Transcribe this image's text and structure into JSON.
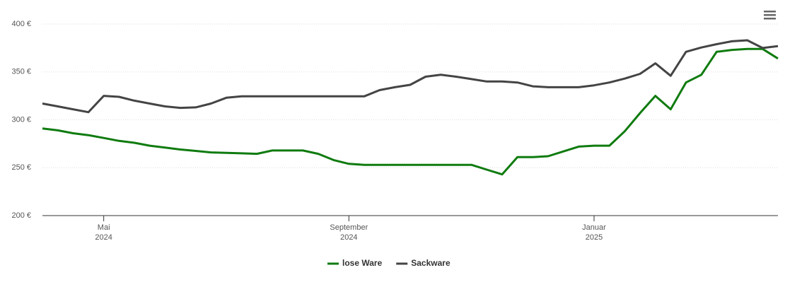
{
  "chart_data": {
    "type": "line",
    "categories": [
      null,
      null,
      null,
      null,
      "Mai 2024",
      null,
      null,
      null,
      null,
      null,
      null,
      null,
      null,
      null,
      null,
      null,
      null,
      null,
      null,
      null,
      "September 2024",
      null,
      null,
      null,
      null,
      null,
      null,
      null,
      null,
      null,
      null,
      null,
      null,
      null,
      null,
      null,
      "Januar 2025",
      null,
      null,
      null,
      null,
      null,
      null,
      null,
      null,
      null,
      null,
      null,
      null
    ],
    "series": [
      {
        "name": "lose Ware",
        "color": "#0f7b0f",
        "values": [
          291,
          289,
          286,
          284,
          281,
          278,
          276,
          273,
          271,
          269,
          267.5,
          266,
          265.5,
          265,
          264.5,
          268,
          268,
          268,
          264.5,
          258,
          254,
          253,
          253,
          253,
          253,
          253,
          253,
          253,
          253,
          248,
          243,
          261,
          261,
          262,
          267,
          272,
          273,
          273,
          288,
          307,
          325,
          311,
          339,
          347,
          371,
          373,
          374,
          374,
          364
        ]
      },
      {
        "name": "Sackware",
        "color": "#444444",
        "values": [
          317,
          314,
          311,
          308,
          325,
          324,
          320,
          317,
          314,
          312.5,
          313,
          317,
          323,
          324.5,
          324.5,
          324.5,
          324.5,
          324.5,
          324.5,
          324.5,
          324.5,
          324.5,
          331,
          334,
          336.5,
          345,
          347,
          345,
          342.5,
          340,
          340,
          339,
          335,
          334,
          334,
          334,
          336,
          339,
          343,
          348,
          359,
          346,
          371,
          375.5,
          379,
          382,
          383,
          375,
          377
        ]
      }
    ],
    "ylim": [
      200,
      400
    ],
    "yticks": [
      {
        "value": 200,
        "label": "200 €"
      },
      {
        "value": 250,
        "label": "250 €"
      },
      {
        "value": 300,
        "label": "300 €"
      },
      {
        "value": 350,
        "label": "350 €"
      },
      {
        "value": 400,
        "label": "400 €"
      }
    ],
    "grid": true
  }
}
